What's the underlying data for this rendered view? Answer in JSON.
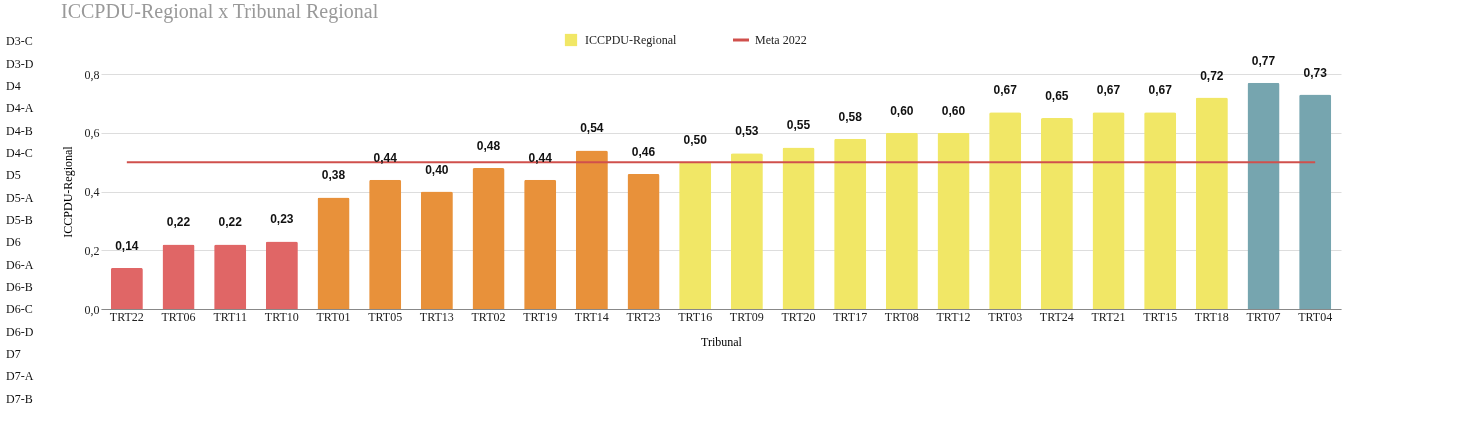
{
  "chart_data": {
    "type": "bar",
    "title": "ICCPDU-Regional x Tribunal Regional",
    "xlabel": "Tribunal",
    "ylabel": "ICCPDU-Regional",
    "categories": [
      "TRT22",
      "TRT06",
      "TRT11",
      "TRT10",
      "TRT01",
      "TRT05",
      "TRT13",
      "TRT02",
      "TRT19",
      "TRT14",
      "TRT23",
      "TRT16",
      "TRT09",
      "TRT20",
      "TRT17",
      "TRT08",
      "TRT12",
      "TRT03",
      "TRT24",
      "TRT21",
      "TRT15",
      "TRT18",
      "TRT07",
      "TRT04"
    ],
    "series": [
      {
        "name": "ICCPDU-Regional",
        "color": "#f1e766",
        "values": [
          0.14,
          0.22,
          0.22,
          0.23,
          0.38,
          0.44,
          0.4,
          0.48,
          0.44,
          0.54,
          0.46,
          0.5,
          0.53,
          0.55,
          0.58,
          0.6,
          0.6,
          0.67,
          0.65,
          0.67,
          0.67,
          0.72,
          0.77,
          0.73
        ],
        "colors": [
          "#e06666",
          "#e06666",
          "#e06666",
          "#e06666",
          "#e8913a",
          "#e8913a",
          "#e8913a",
          "#e8913a",
          "#e8913a",
          "#e8913a",
          "#e8913a",
          "#f1e766",
          "#f1e766",
          "#f1e766",
          "#f1e766",
          "#f1e766",
          "#f1e766",
          "#f1e766",
          "#f1e766",
          "#f1e766",
          "#f1e766",
          "#f1e766",
          "#76a5af",
          "#76a5af"
        ],
        "value_labels": [
          "0,14",
          "0,22",
          "0,22",
          "0,23",
          "0,38",
          "0,44",
          "0,40",
          "0,48",
          "0,44",
          "0,54",
          "0,46",
          "0,50",
          "0,53",
          "0,55",
          "0,58",
          "0,60",
          "0,60",
          "0,67",
          "0,65",
          "0,67",
          "0,67",
          "0,72",
          "0,77",
          "0,73"
        ]
      }
    ],
    "ref_lines": [
      {
        "axis": "y",
        "value": 0.5,
        "label": "Meta 2022",
        "color": "#d0504c"
      }
    ],
    "ylim": [
      0,
      0.8
    ],
    "yticks": [
      {
        "value": 0,
        "label": "0,0"
      },
      {
        "value": 0.2,
        "label": "0,2"
      },
      {
        "value": 0.4,
        "label": "0,4"
      },
      {
        "value": 0.6,
        "label": "0,6"
      },
      {
        "value": 0.8,
        "label": "0,8"
      }
    ],
    "grid": "y",
    "legend": "top",
    "annotations": [
      "D3-C",
      "D3-D",
      "D4",
      "D4-A",
      "D4-B",
      "D4-C",
      "D5",
      "D5-A",
      "D5-B",
      "D6",
      "D6-A",
      "D6-B",
      "D6-C",
      "D6-D",
      "D7",
      "D7-A",
      "D7-B"
    ]
  }
}
